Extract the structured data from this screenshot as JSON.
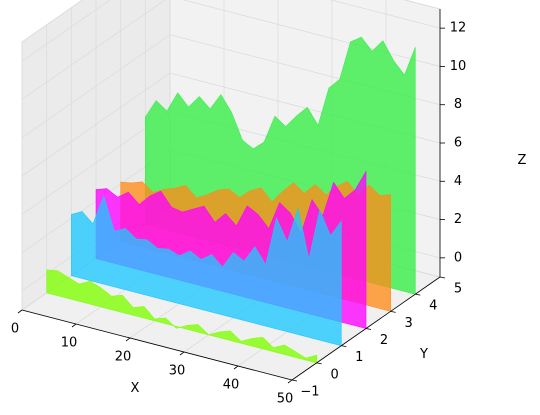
{
  "chart_data": {
    "type": "area",
    "projection": "3d",
    "title": "",
    "xlabel": "X",
    "ylabel": "Y",
    "zlabel": "Z",
    "xlim": [
      0,
      50
    ],
    "ylim": [
      -1,
      5
    ],
    "zlim": [
      -1,
      13
    ],
    "xticks": [
      0,
      10,
      20,
      30,
      40,
      50
    ],
    "yticks": [
      -1,
      0,
      1,
      2,
      3,
      4,
      5
    ],
    "zticks": [
      0,
      2,
      4,
      6,
      8,
      10,
      12
    ],
    "grid": true,
    "series": [
      {
        "y": 0,
        "color": "#7FFF00",
        "x": [
          0,
          2,
          4,
          6,
          8,
          10,
          12,
          14,
          16,
          18,
          20,
          22,
          24,
          26,
          28,
          30,
          32,
          34,
          36,
          38,
          40,
          42,
          44,
          46,
          48,
          50
        ],
        "z": [
          0.2,
          0.3,
          0.1,
          -0.1,
          0.2,
          0.0,
          -0.3,
          -0.1,
          -0.6,
          -0.4,
          -0.9,
          -0.7,
          -1.1,
          -0.8,
          -0.6,
          -1.0,
          -0.7,
          -0.5,
          -0.9,
          -0.6,
          -0.4,
          -0.8,
          -0.5,
          -0.7,
          -0.9,
          -0.6
        ]
      },
      {
        "y": 1,
        "color": "#1EC8FF",
        "x": [
          0,
          2,
          4,
          6,
          8,
          10,
          12,
          14,
          16,
          18,
          20,
          22,
          24,
          26,
          28,
          30,
          32,
          34,
          36,
          38,
          40,
          42,
          44,
          46,
          48,
          50
        ],
        "z": [
          2.2,
          2.5,
          2.0,
          3.6,
          1.9,
          2.2,
          1.8,
          1.9,
          1.6,
          1.7,
          1.5,
          1.9,
          1.6,
          2.0,
          1.5,
          2.4,
          2.1,
          3.0,
          2.2,
          4.8,
          3.7,
          5.6,
          3.1,
          5.8,
          4.6,
          5.5
        ]
      },
      {
        "y": 2,
        "color": "#FF00FF",
        "x": [
          0,
          2,
          4,
          6,
          8,
          10,
          12,
          14,
          16,
          18,
          20,
          22,
          24,
          26,
          28,
          30,
          32,
          34,
          36,
          38,
          40,
          42,
          44,
          46,
          48,
          50
        ],
        "z": [
          2.6,
          2.8,
          2.5,
          2.9,
          2.4,
          3.0,
          3.4,
          2.7,
          2.6,
          2.9,
          3.2,
          2.5,
          3.1,
          2.6,
          3.8,
          3.5,
          2.9,
          4.4,
          4.0,
          3.1,
          5.0,
          4.3,
          6.2,
          5.5,
          6.1,
          7.2
        ]
      },
      {
        "y": 3,
        "color": "#FF8C1A",
        "x": [
          0,
          2,
          4,
          6,
          8,
          10,
          12,
          14,
          16,
          18,
          20,
          22,
          24,
          26,
          28,
          30,
          32,
          34,
          36,
          38,
          40,
          42,
          44,
          46,
          48,
          50
        ],
        "z": [
          2.1,
          2.2,
          2.4,
          2.0,
          2.3,
          2.5,
          2.8,
          2.3,
          2.6,
          3.0,
          3.2,
          2.9,
          3.4,
          3.7,
          3.1,
          3.8,
          4.4,
          4.0,
          4.6,
          4.2,
          4.8,
          5.2,
          4.6,
          5.3,
          4.9,
          5.1
        ]
      },
      {
        "y": 4,
        "color": "#33EE44",
        "x": [
          0,
          2,
          4,
          6,
          8,
          10,
          12,
          14,
          16,
          18,
          20,
          22,
          24,
          26,
          28,
          30,
          32,
          34,
          36,
          38,
          40,
          42,
          44,
          46,
          48,
          50
        ],
        "z": [
          4.6,
          5.6,
          5.2,
          6.3,
          5.7,
          6.4,
          5.9,
          6.8,
          6.0,
          4.7,
          4.4,
          4.9,
          6.4,
          6.0,
          6.7,
          7.3,
          6.5,
          8.6,
          9.2,
          11.3,
          11.7,
          11.1,
          11.8,
          10.9,
          10.3,
          11.9
        ]
      }
    ]
  }
}
